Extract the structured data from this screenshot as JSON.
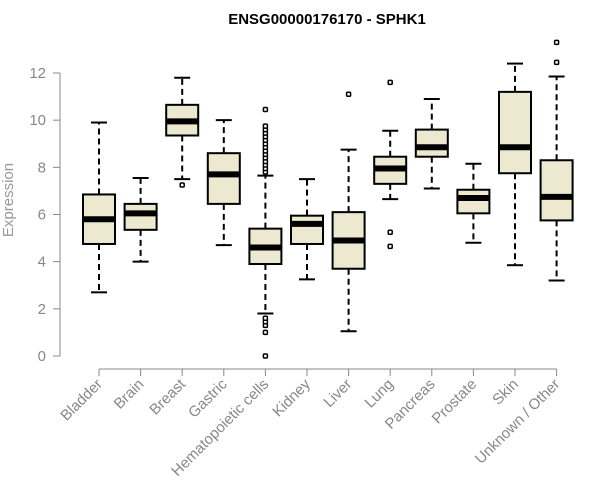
{
  "chart_data": {
    "type": "boxplot",
    "title": "ENSG00000176170 - SPHK1",
    "xlabel": "",
    "ylabel": "Expression",
    "ylim": [
      0,
      13.2
    ],
    "yticks": [
      0,
      2,
      4,
      6,
      8,
      10,
      12
    ],
    "box_color": "#EDE8D0",
    "categories": [
      "Bladder",
      "Brain",
      "Breast",
      "Gastric",
      "Hematopoietic cells",
      "Kidney",
      "Liver",
      "Lung",
      "Pancreas",
      "Prostate",
      "Skin",
      "Unknown / Other"
    ],
    "boxes": [
      {
        "name": "Bladder",
        "whisker_low": 2.7,
        "q1": 4.75,
        "median": 5.8,
        "q3": 6.85,
        "whisker_high": 9.9,
        "outliers": []
      },
      {
        "name": "Brain",
        "whisker_low": 4.0,
        "q1": 5.35,
        "median": 6.05,
        "q3": 6.45,
        "whisker_high": 7.55,
        "outliers": []
      },
      {
        "name": "Breast",
        "whisker_low": 7.5,
        "q1": 9.35,
        "median": 9.95,
        "q3": 10.65,
        "whisker_high": 11.8,
        "outliers": [
          7.25
        ]
      },
      {
        "name": "Gastric",
        "whisker_low": 4.7,
        "q1": 6.45,
        "median": 7.7,
        "q3": 8.6,
        "whisker_high": 10.0,
        "outliers": []
      },
      {
        "name": "Hematopoietic cells",
        "whisker_low": 1.8,
        "q1": 3.9,
        "median": 4.6,
        "q3": 5.4,
        "whisker_high": 7.65,
        "outliers": [
          0.0,
          1.0,
          1.3,
          1.45,
          1.6,
          7.8,
          7.95,
          8.1,
          8.25,
          8.4,
          8.55,
          8.7,
          8.85,
          9.0,
          9.15,
          9.3,
          9.45,
          9.6,
          9.75,
          10.45
        ]
      },
      {
        "name": "Kidney",
        "whisker_low": 3.25,
        "q1": 4.75,
        "median": 5.6,
        "q3": 5.95,
        "whisker_high": 7.5,
        "outliers": []
      },
      {
        "name": "Liver",
        "whisker_low": 1.05,
        "q1": 3.7,
        "median": 4.9,
        "q3": 6.1,
        "whisker_high": 8.75,
        "outliers": [
          11.1
        ]
      },
      {
        "name": "Lung",
        "whisker_low": 6.65,
        "q1": 7.3,
        "median": 7.95,
        "q3": 8.45,
        "whisker_high": 9.55,
        "outliers": [
          4.65,
          5.25,
          11.6
        ]
      },
      {
        "name": "Pancreas",
        "whisker_low": 7.1,
        "q1": 8.45,
        "median": 8.85,
        "q3": 9.6,
        "whisker_high": 10.9,
        "outliers": []
      },
      {
        "name": "Prostate",
        "whisker_low": 4.8,
        "q1": 6.05,
        "median": 6.7,
        "q3": 7.05,
        "whisker_high": 8.15,
        "outliers": []
      },
      {
        "name": "Skin",
        "whisker_low": 3.85,
        "q1": 7.75,
        "median": 8.85,
        "q3": 11.2,
        "whisker_high": 12.4,
        "outliers": []
      },
      {
        "name": "Unknown / Other",
        "whisker_low": 3.2,
        "q1": 5.75,
        "median": 6.75,
        "q3": 8.3,
        "whisker_high": 11.85,
        "outliers": [
          12.45,
          13.3
        ]
      }
    ]
  }
}
